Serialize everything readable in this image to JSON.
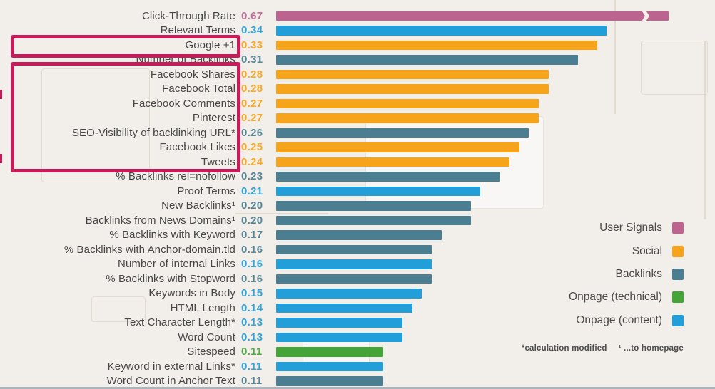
{
  "chart_data": {
    "type": "bar",
    "orientation": "horizontal",
    "title": "",
    "xlabel": "",
    "ylabel": "",
    "value_range_shown": [
      0,
      0.34
    ],
    "grid": false,
    "legend_position": "right",
    "rows": [
      {
        "label": "Click-Through Rate",
        "value": "0.67",
        "category": "user_signals",
        "truncated": true
      },
      {
        "label": "Relevant Terms",
        "value": "0.34",
        "category": "onpage_content"
      },
      {
        "label": "Google +1",
        "value": "0.33",
        "category": "social"
      },
      {
        "label": "Number of Backlinks",
        "value": "0.31",
        "category": "backlinks"
      },
      {
        "label": "Facebook Shares",
        "value": "0.28",
        "category": "social"
      },
      {
        "label": "Facebook Total",
        "value": "0.28",
        "category": "social"
      },
      {
        "label": "Facebook Comments",
        "value": "0.27",
        "category": "social"
      },
      {
        "label": "Pinterest",
        "value": "0.27",
        "category": "social"
      },
      {
        "label": "SEO-Visibility of backlinking URL*",
        "value": "0.26",
        "category": "backlinks"
      },
      {
        "label": "Facebook Likes",
        "value": "0.25",
        "category": "social"
      },
      {
        "label": "Tweets",
        "value": "0.24",
        "category": "social"
      },
      {
        "label": "% Backlinks rel=nofollow",
        "value": "0.23",
        "category": "backlinks"
      },
      {
        "label": "Proof Terms",
        "value": "0.21",
        "category": "onpage_content"
      },
      {
        "label": "New Backlinks¹",
        "value": "0.20",
        "category": "backlinks"
      },
      {
        "label": "Backlinks from News Domains¹",
        "value": "0.20",
        "category": "backlinks"
      },
      {
        "label": "% Backlinks with Keyword",
        "value": "0.17",
        "category": "backlinks"
      },
      {
        "label": "% Backlinks with Anchor-domain.tld",
        "value": "0.16",
        "category": "backlinks"
      },
      {
        "label": "Number of internal Links",
        "value": "0.16",
        "category": "onpage_content"
      },
      {
        "label": "% Backlinks with Stopword",
        "value": "0.16",
        "category": "backlinks"
      },
      {
        "label": "Keywords in Body",
        "value": "0.15",
        "category": "onpage_content"
      },
      {
        "label": "HTML Length",
        "value": "0.14",
        "category": "onpage_content"
      },
      {
        "label": "Text Character Length*",
        "value": "0.13",
        "category": "onpage_content"
      },
      {
        "label": "Word Count",
        "value": "0.13",
        "category": "onpage_content"
      },
      {
        "label": "Sitespeed",
        "value": "0.11",
        "category": "onpage_technical"
      },
      {
        "label": "Keyword in external Links*",
        "value": "0.11",
        "category": "onpage_content"
      },
      {
        "label": "Word Count in Anchor Text",
        "value": "0.11",
        "category": "backlinks"
      }
    ],
    "legend": [
      {
        "label": "User Signals",
        "key": "user_signals"
      },
      {
        "label": "Social",
        "key": "social"
      },
      {
        "label": "Backlinks",
        "key": "backlinks"
      },
      {
        "label": "Onpage (technical)",
        "key": "onpage_technical"
      },
      {
        "label": "Onpage (content)",
        "key": "onpage_content"
      }
    ],
    "palette": {
      "user_signals": "#bd6390",
      "social": "#f5a41b",
      "backlinks": "#4b7e91",
      "onpage_technical": "#45a438",
      "onpage_content": "#229fd9"
    },
    "footnote": {
      "asterisk": "*calculation modified",
      "superscript": "¹ ...to homepage"
    }
  },
  "annotations": {
    "highlight_color": "#c41e5a",
    "boxes": [
      {
        "name": "google-plus-highlight",
        "around_rows": [
          "Google +1"
        ]
      },
      {
        "name": "social-signals-highlight",
        "around_rows": [
          "Facebook Shares",
          "Facebook Total",
          "Facebook Comments",
          "Pinterest",
          "SEO-Visibility of backlinking URL*",
          "Facebook Likes",
          "Tweets"
        ]
      }
    ]
  }
}
